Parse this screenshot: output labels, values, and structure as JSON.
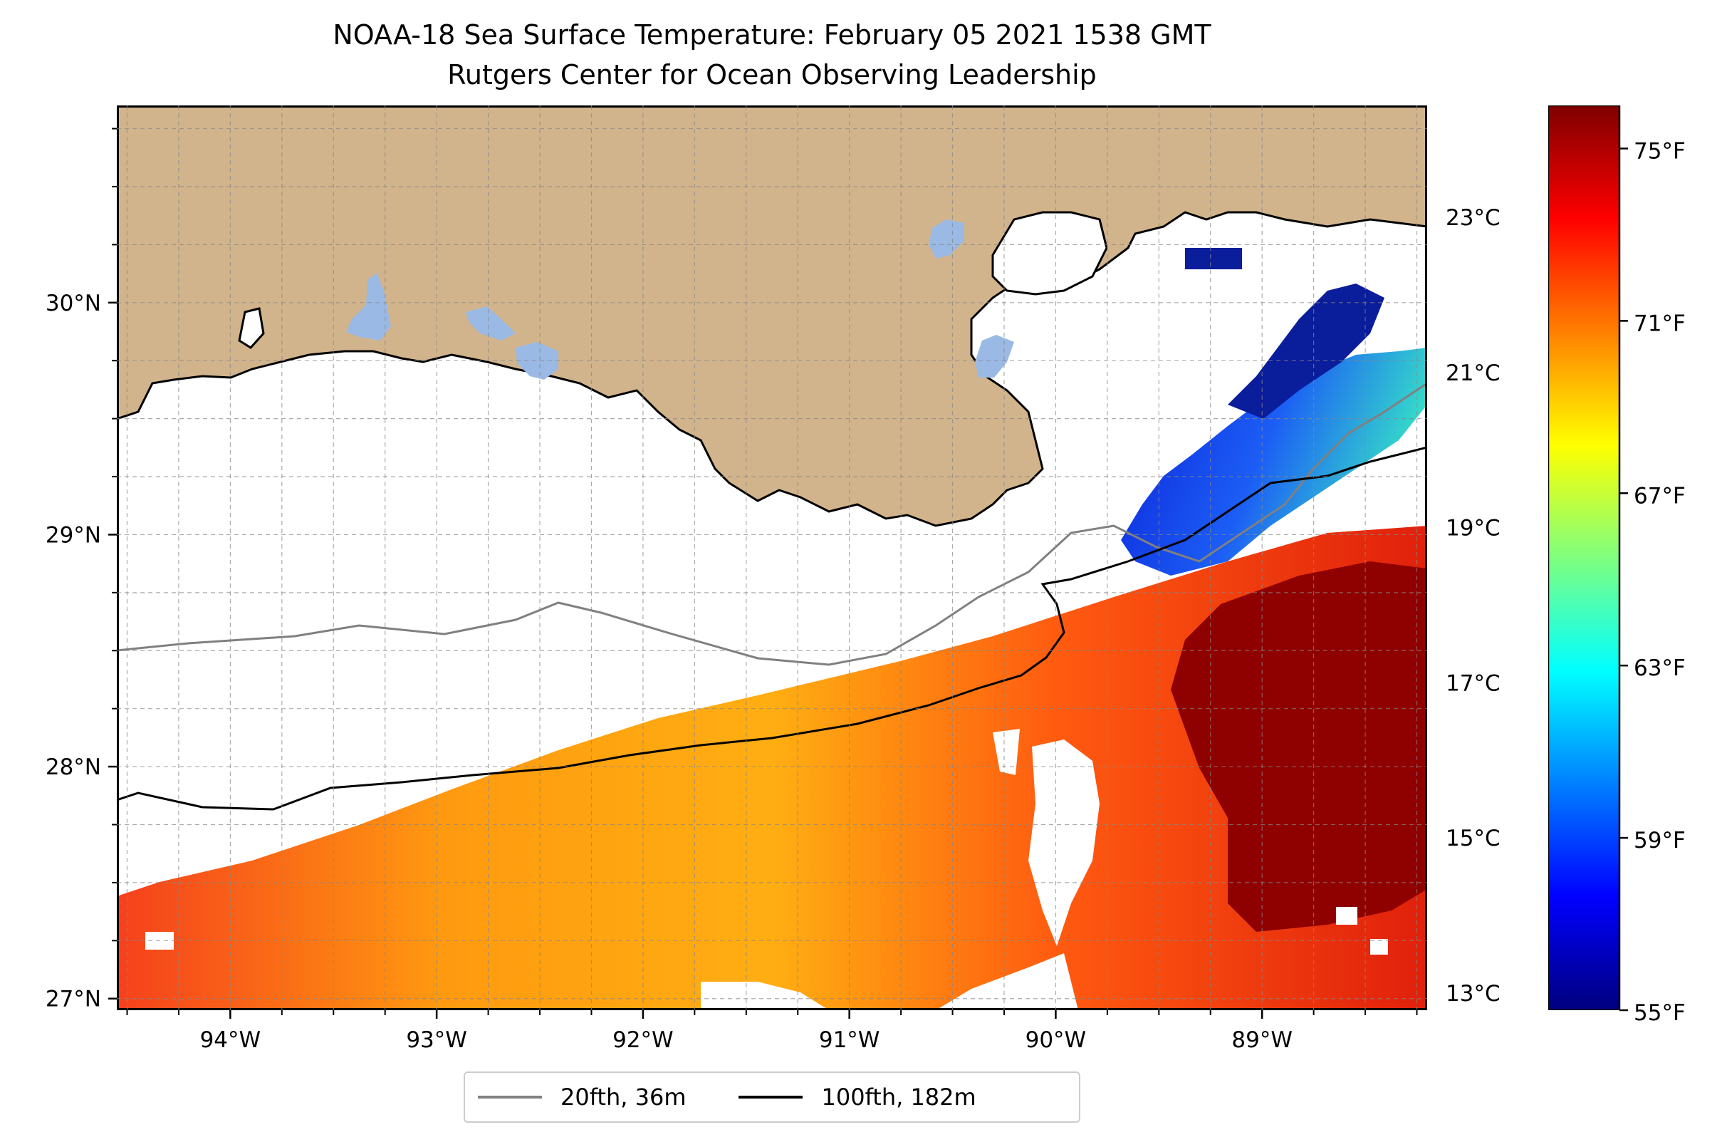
{
  "title": {
    "line1": "NOAA-18 Sea Surface Temperature: February 05 2021 1538 GMT",
    "line2": "Rutgers Center for Ocean Observing Leadership"
  },
  "map": {
    "lon_range": [
      -94.55,
      -88.2
    ],
    "lat_range": [
      26.95,
      30.85
    ],
    "lon_ticks": [
      {
        "value": -94,
        "label": "94°W"
      },
      {
        "value": -93,
        "label": "93°W"
      },
      {
        "value": -92,
        "label": "92°W"
      },
      {
        "value": -91,
        "label": "91°W"
      },
      {
        "value": -90,
        "label": "90°W"
      },
      {
        "value": -89,
        "label": "89°W"
      }
    ],
    "lat_ticks": [
      {
        "value": 27,
        "label": "27°N"
      },
      {
        "value": 28,
        "label": "28°N"
      },
      {
        "value": 29,
        "label": "29°N"
      },
      {
        "value": 30,
        "label": "30°N"
      }
    ],
    "grid": "dashed, 0.25° spacing",
    "colors": {
      "land": "#d2b48c",
      "lakes": "#9ab9e4",
      "coastline": "#000000",
      "no_data": "#ffffff"
    }
  },
  "colorbar": {
    "colormap": "jet",
    "range_f": [
      55,
      76
    ],
    "fahrenheit_ticks": [
      "55°F",
      "59°F",
      "63°F",
      "67°F",
      "71°F",
      "75°F"
    ],
    "celsius_ticks": [
      "13°C",
      "15°C",
      "17°C",
      "19°C",
      "21°C",
      "23°C"
    ]
  },
  "legend": {
    "items": [
      {
        "label": "20fth, 36m",
        "color": "#808080"
      },
      {
        "label": "100fth, 182m",
        "color": "#000000"
      }
    ]
  }
}
